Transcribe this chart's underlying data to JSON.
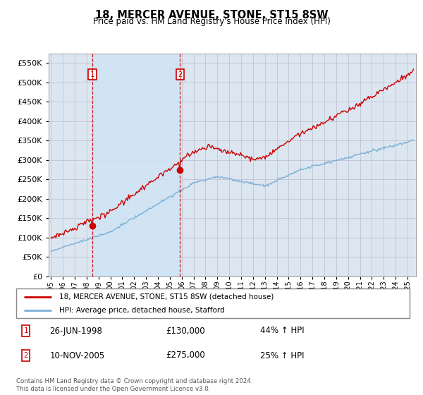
{
  "title": "18, MERCER AVENUE, STONE, ST15 8SW",
  "subtitle": "Price paid vs. HM Land Registry's House Price Index (HPI)",
  "legend_line1": "18, MERCER AVENUE, STONE, ST15 8SW (detached house)",
  "legend_line2": "HPI: Average price, detached house, Stafford",
  "footnote": "Contains HM Land Registry data © Crown copyright and database right 2024.\nThis data is licensed under the Open Government Licence v3.0.",
  "sale1_date": "26-JUN-1998",
  "sale1_price": "£130,000",
  "sale1_hpi": "44% ↑ HPI",
  "sale2_date": "10-NOV-2005",
  "sale2_price": "£275,000",
  "sale2_hpi": "25% ↑ HPI",
  "sale1_year": 1998.49,
  "sale2_year": 2005.86,
  "sale1_price_val": 130000,
  "sale2_price_val": 275000,
  "hpi_color": "#7bafd4",
  "price_color": "#cc0000",
  "plot_bg_color": "#dce6f1",
  "white": "#ffffff",
  "grid_color": "#bbbbcc",
  "shade_color": "#d0e4f5",
  "marker_box_color": "#cc0000",
  "ylim": [
    0,
    575000
  ],
  "yticks": [
    0,
    50000,
    100000,
    150000,
    200000,
    250000,
    300000,
    350000,
    400000,
    450000,
    500000,
    550000
  ],
  "xlim_start": 1994.8,
  "xlim_end": 2025.7,
  "xtick_start": 1995,
  "xtick_end": 2025
}
